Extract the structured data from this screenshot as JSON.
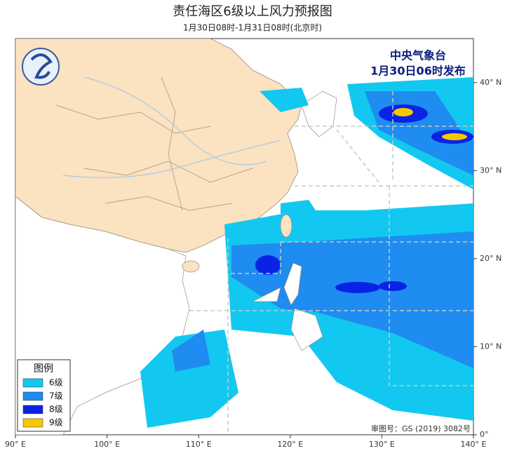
{
  "header": {
    "title": "责任海区6级以上风力预报图",
    "subtitle": "1月30日08时-1月31日08时(北京时)"
  },
  "map": {
    "issuer": "中央气象台",
    "issued": "1月30日06时发布",
    "approval": "审图号：GS (2019) 3082号",
    "lon_ticks": [
      {
        "value": 90,
        "label": "90° E"
      },
      {
        "value": 100,
        "label": "100° E"
      },
      {
        "value": 110,
        "label": "110° E"
      },
      {
        "value": 120,
        "label": "120° E"
      },
      {
        "value": 130,
        "label": "130° E"
      },
      {
        "value": 140,
        "label": "140° E"
      }
    ],
    "lat_ticks": [
      {
        "value": 0,
        "label": "0°"
      },
      {
        "value": 10,
        "label": "10° N"
      },
      {
        "value": 20,
        "label": "20° N"
      },
      {
        "value": 30,
        "label": "30° N"
      },
      {
        "value": 40,
        "label": "40° N"
      }
    ]
  },
  "legend": {
    "title": "图例",
    "items": [
      {
        "label": "6级",
        "color": "#12c8f0"
      },
      {
        "label": "7级",
        "color": "#1e8cf0"
      },
      {
        "label": "8级",
        "color": "#0a22e6"
      },
      {
        "label": "9级",
        "color": "#f5c800"
      }
    ]
  }
}
